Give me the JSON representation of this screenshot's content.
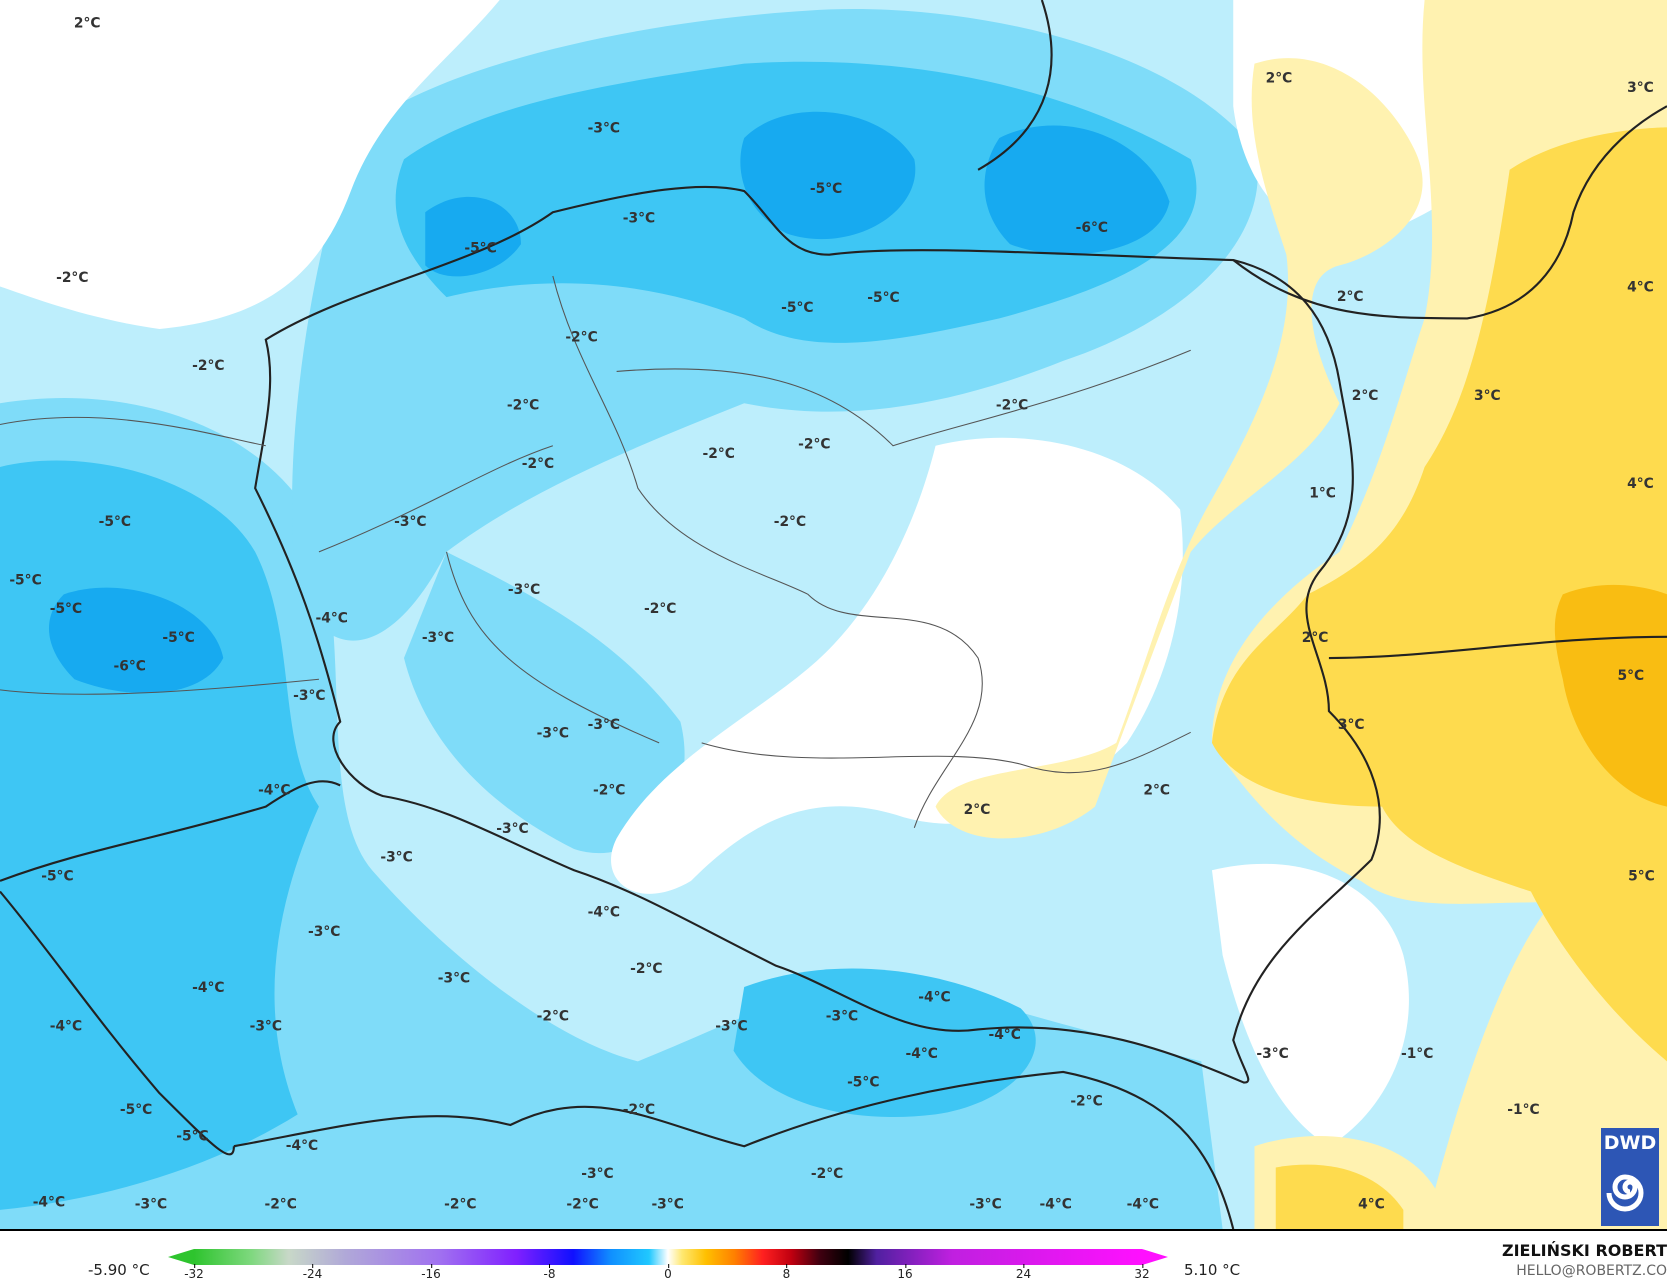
{
  "map": {
    "variable_unit": "°C",
    "labels": [
      "2°C",
      "2°C",
      "3°C",
      "-3°C",
      "-5°C",
      "-3°C",
      "-6°C",
      "-5°C",
      "-2°C",
      "2°C",
      "4°C",
      "-5°C",
      "-5°C",
      "-2°C",
      "-2°C",
      "2°C",
      "3°C",
      "-2°C",
      "-2°C",
      "-2°C",
      "-2°C",
      "-2°C",
      "1°C",
      "4°C",
      "-5°C",
      "-3°C",
      "-2°C",
      "-5°C",
      "-3°C",
      "-5°C",
      "-2°C",
      "-4°C",
      "-5°C",
      "-3°C",
      "2°C",
      "-6°C",
      "5°C",
      "-3°C",
      "3°C",
      "-3°C",
      "-3°C",
      "-4°C",
      "-2°C",
      "2°C",
      "2°C",
      "-3°C",
      "-3°C",
      "-5°C",
      "5°C",
      "-4°C",
      "-3°C",
      "-2°C",
      "-3°C",
      "-4°C",
      "-4°C",
      "-2°C",
      "-4°C",
      "-3°C",
      "-3°C",
      "-3°C",
      "-4°C",
      "-4°C",
      "-3°C",
      "-1°C",
      "-5°C",
      "-2°C",
      "-2°C",
      "-1°C",
      "-5°C",
      "-5°C",
      "-4°C",
      "-3°C",
      "-2°C",
      "-4°C",
      "-3°C",
      "-2°C",
      "-2°C",
      "-2°C",
      "-3°C",
      "-3°C",
      "-4°C",
      "-4°C",
      "4°C"
    ],
    "colors": {
      "cold_light": "#bdeefc",
      "cold_mid": "#7fdcf9",
      "cold": "#3ec6f4",
      "cold_deep": "#17aaf0",
      "warm_light": "#fff2b0",
      "warm": "#fedb4e",
      "warm_deep": "#f9bd12"
    }
  },
  "logo": {
    "text": "DWD"
  },
  "legend": {
    "min_value": "-5.90 °C",
    "max_value": "5.10 °C",
    "ticks": [
      "-32",
      "-24",
      "-16",
      "-8",
      "0",
      "8",
      "16",
      "24",
      "32"
    ]
  },
  "credits": {
    "author": "ZIELIŃSKI ROBERT",
    "email": "HELLO@ROBERTZ.CO"
  }
}
